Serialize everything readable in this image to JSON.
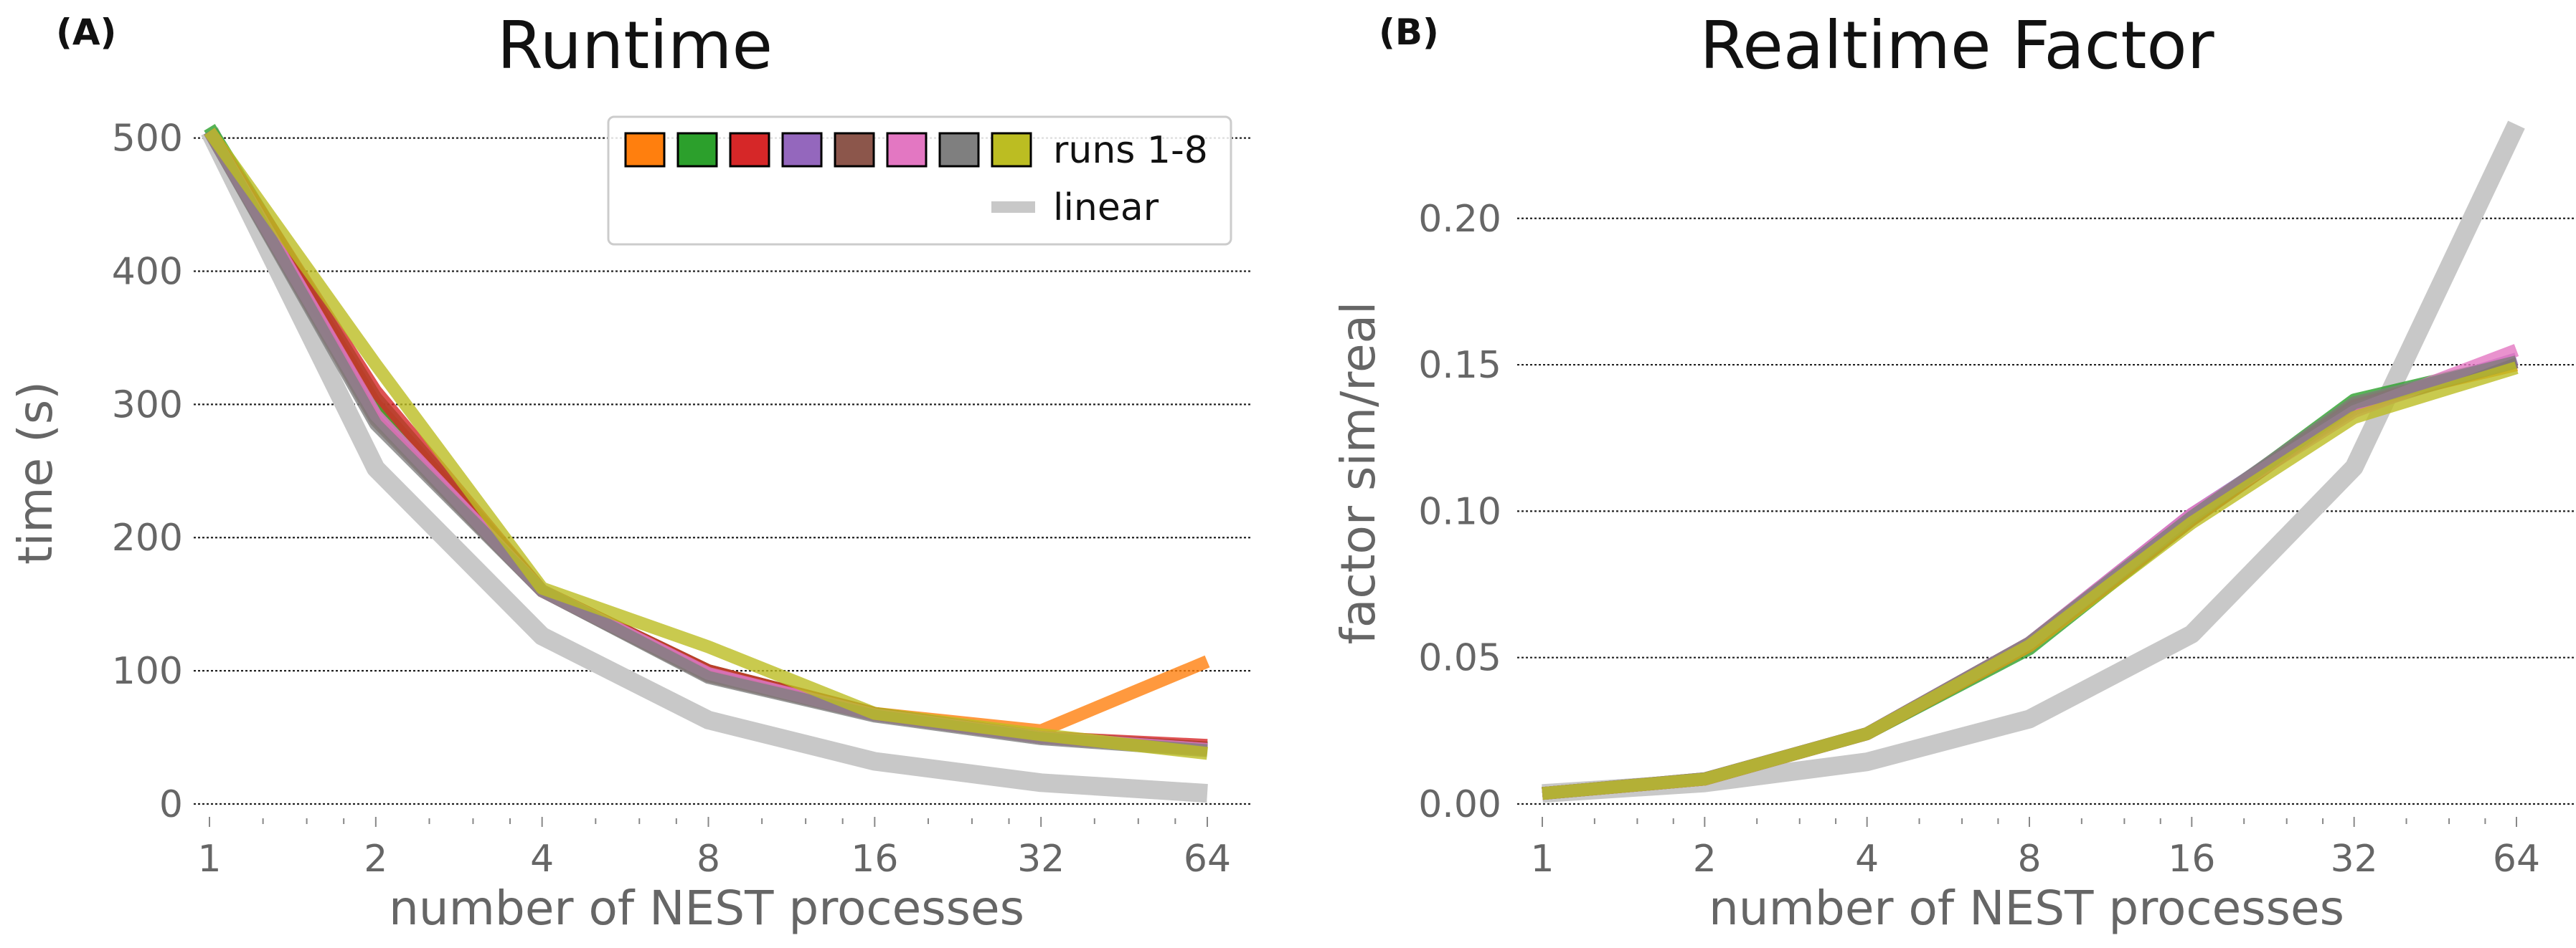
{
  "figure": {
    "panel_letters": [
      "(A)",
      "(B)"
    ]
  },
  "chart_data": [
    {
      "type": "line",
      "panel": "(A)",
      "title": "Runtime",
      "xlabel": "number of NEST processes",
      "ylabel": "time (s)",
      "x_scale": "log2",
      "x": [
        1,
        2,
        4,
        8,
        16,
        32,
        64
      ],
      "x_tick_labels": [
        "1",
        "2",
        "4",
        "8",
        "16",
        "32",
        "64"
      ],
      "ylim": [
        0,
        510
      ],
      "y_ticks": [
        0,
        100,
        200,
        300,
        400,
        500
      ],
      "y_tick_labels": [
        "0",
        "100",
        "200",
        "300",
        "400",
        "500"
      ],
      "grid": "horizontal dotted",
      "legend": {
        "placement": "top-right",
        "swatch_label": "runs 1-8",
        "line_label": "linear"
      },
      "series": [
        {
          "color": "#1f77b4",
          "values": [
            505,
            300,
            160,
            100,
            68,
            50,
            42
          ]
        },
        {
          "color": "#ff7f0e",
          "values": [
            505,
            300,
            160,
            100,
            68,
            55,
            107
          ]
        },
        {
          "color": "#2ca02c",
          "values": [
            508,
            305,
            160,
            100,
            68,
            50,
            42
          ]
        },
        {
          "color": "#d62728",
          "values": [
            505,
            310,
            160,
            100,
            68,
            50,
            44
          ]
        },
        {
          "color": "#9467bd",
          "values": [
            505,
            290,
            160,
            97,
            67,
            50,
            41
          ]
        },
        {
          "color": "#8c564b",
          "values": [
            505,
            288,
            160,
            96,
            67,
            50,
            41
          ]
        },
        {
          "color": "#e377c2",
          "values": [
            505,
            292,
            160,
            98,
            67,
            50,
            41
          ]
        },
        {
          "color": "#7f7f7f",
          "values": [
            505,
            285,
            160,
            95,
            66,
            49,
            40
          ]
        },
        {
          "color": "#bcbd22",
          "values": [
            505,
            330,
            162,
            118,
            68,
            52,
            38
          ]
        }
      ],
      "reference": {
        "name": "linear",
        "color": "#c8c8c8",
        "values": [
          505,
          252,
          126,
          63,
          32,
          16,
          8
        ]
      }
    },
    {
      "type": "line",
      "panel": "(B)",
      "title": "Realtime Factor",
      "xlabel": "number of NEST processes",
      "ylabel": "factor sim/real",
      "x_scale": "log2",
      "x": [
        1,
        2,
        4,
        8,
        16,
        32,
        64
      ],
      "x_tick_labels": [
        "1",
        "2",
        "4",
        "8",
        "16",
        "32",
        "64"
      ],
      "ylim": [
        0,
        0.232
      ],
      "y_ticks": [
        0.0,
        0.05,
        0.1,
        0.15,
        0.2
      ],
      "y_tick_labels": [
        "0.00",
        "0.05",
        "0.10",
        "0.15",
        "0.20"
      ],
      "grid": "horizontal dotted",
      "series": [
        {
          "color": "#1f77b4",
          "values": [
            0.0036,
            0.0085,
            0.024,
            0.054,
            0.097,
            0.136,
            0.151
          ]
        },
        {
          "color": "#ff7f0e",
          "values": [
            0.0036,
            0.0085,
            0.024,
            0.054,
            0.097,
            0.137,
            0.15
          ]
        },
        {
          "color": "#2ca02c",
          "values": [
            0.0036,
            0.0085,
            0.024,
            0.053,
            0.097,
            0.138,
            0.151
          ]
        },
        {
          "color": "#d62728",
          "values": [
            0.0036,
            0.0085,
            0.024,
            0.054,
            0.097,
            0.136,
            0.151
          ]
        },
        {
          "color": "#9467bd",
          "values": [
            0.0036,
            0.0086,
            0.024,
            0.055,
            0.099,
            0.135,
            0.152
          ]
        },
        {
          "color": "#8c564b",
          "values": [
            0.0036,
            0.0086,
            0.024,
            0.055,
            0.098,
            0.136,
            0.151
          ]
        },
        {
          "color": "#e377c2",
          "values": [
            0.0036,
            0.0085,
            0.024,
            0.055,
            0.099,
            0.134,
            0.155
          ]
        },
        {
          "color": "#7f7f7f",
          "values": [
            0.0036,
            0.0086,
            0.024,
            0.055,
            0.098,
            0.137,
            0.151
          ]
        },
        {
          "color": "#bcbd22",
          "values": [
            0.0036,
            0.0085,
            0.024,
            0.054,
            0.096,
            0.132,
            0.149
          ]
        }
      ],
      "reference": {
        "name": "linear",
        "color": "#c8c8c8",
        "values": [
          0.0036,
          0.0072,
          0.0144,
          0.029,
          0.058,
          0.115,
          0.232
        ]
      }
    }
  ]
}
